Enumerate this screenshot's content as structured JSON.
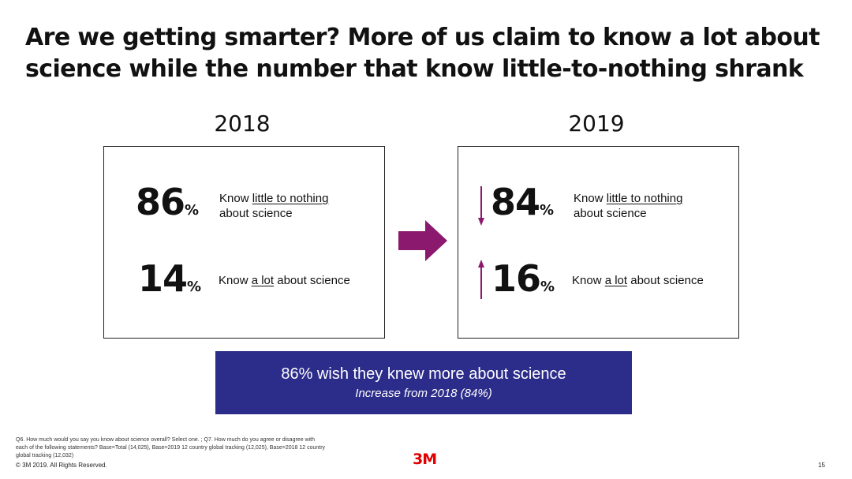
{
  "title": {
    "line1": "Are we getting smarter? More of us claim to know a lot about",
    "line2": "science while the number that know little-to-nothing shrank"
  },
  "panels": [
    {
      "year": "2018",
      "stats": [
        {
          "value": "86",
          "unit": "%",
          "desc_prefix": "Know ",
          "desc_emphasis": "little to nothing",
          "desc_suffix": "",
          "desc_line2": "about science",
          "trend": "none"
        },
        {
          "value": "14",
          "unit": "%",
          "desc_prefix": "Know ",
          "desc_emphasis": "a lot",
          "desc_suffix": " about science",
          "desc_line2": "",
          "trend": "none"
        }
      ]
    },
    {
      "year": "2019",
      "stats": [
        {
          "value": "84",
          "unit": "%",
          "desc_prefix": "Know ",
          "desc_emphasis": "little to nothing",
          "desc_suffix": "",
          "desc_line2": "about science",
          "trend": "down"
        },
        {
          "value": "16",
          "unit": "%",
          "desc_prefix": "Know ",
          "desc_emphasis": "a lot",
          "desc_suffix": " about science",
          "desc_line2": "",
          "trend": "up"
        }
      ]
    }
  ],
  "banner": {
    "main": "86% wish they knew more about science",
    "sub": "Increase from 2018 (84%)"
  },
  "footnote": "Q6. How much would you say you know about science overall? Select one. ; Q7. How much do you agree or disagree with each of the following statements? Base=Total (14,025), Base=2019 12 country global tracking (12,025), Base=2018 12 country global tracking (12,032)",
  "copyright": "© 3M 2019.   All Rights Reserved.",
  "logo_text": "3M",
  "page_number": "15",
  "colors": {
    "accent": "#8b1a6e",
    "banner_bg": "#2c2c8a",
    "logo": "#e00000",
    "text": "#111111"
  },
  "icons": {
    "transition_arrow": "arrow-right-icon",
    "trend_down": "arrow-down-icon",
    "trend_up": "arrow-up-icon"
  }
}
